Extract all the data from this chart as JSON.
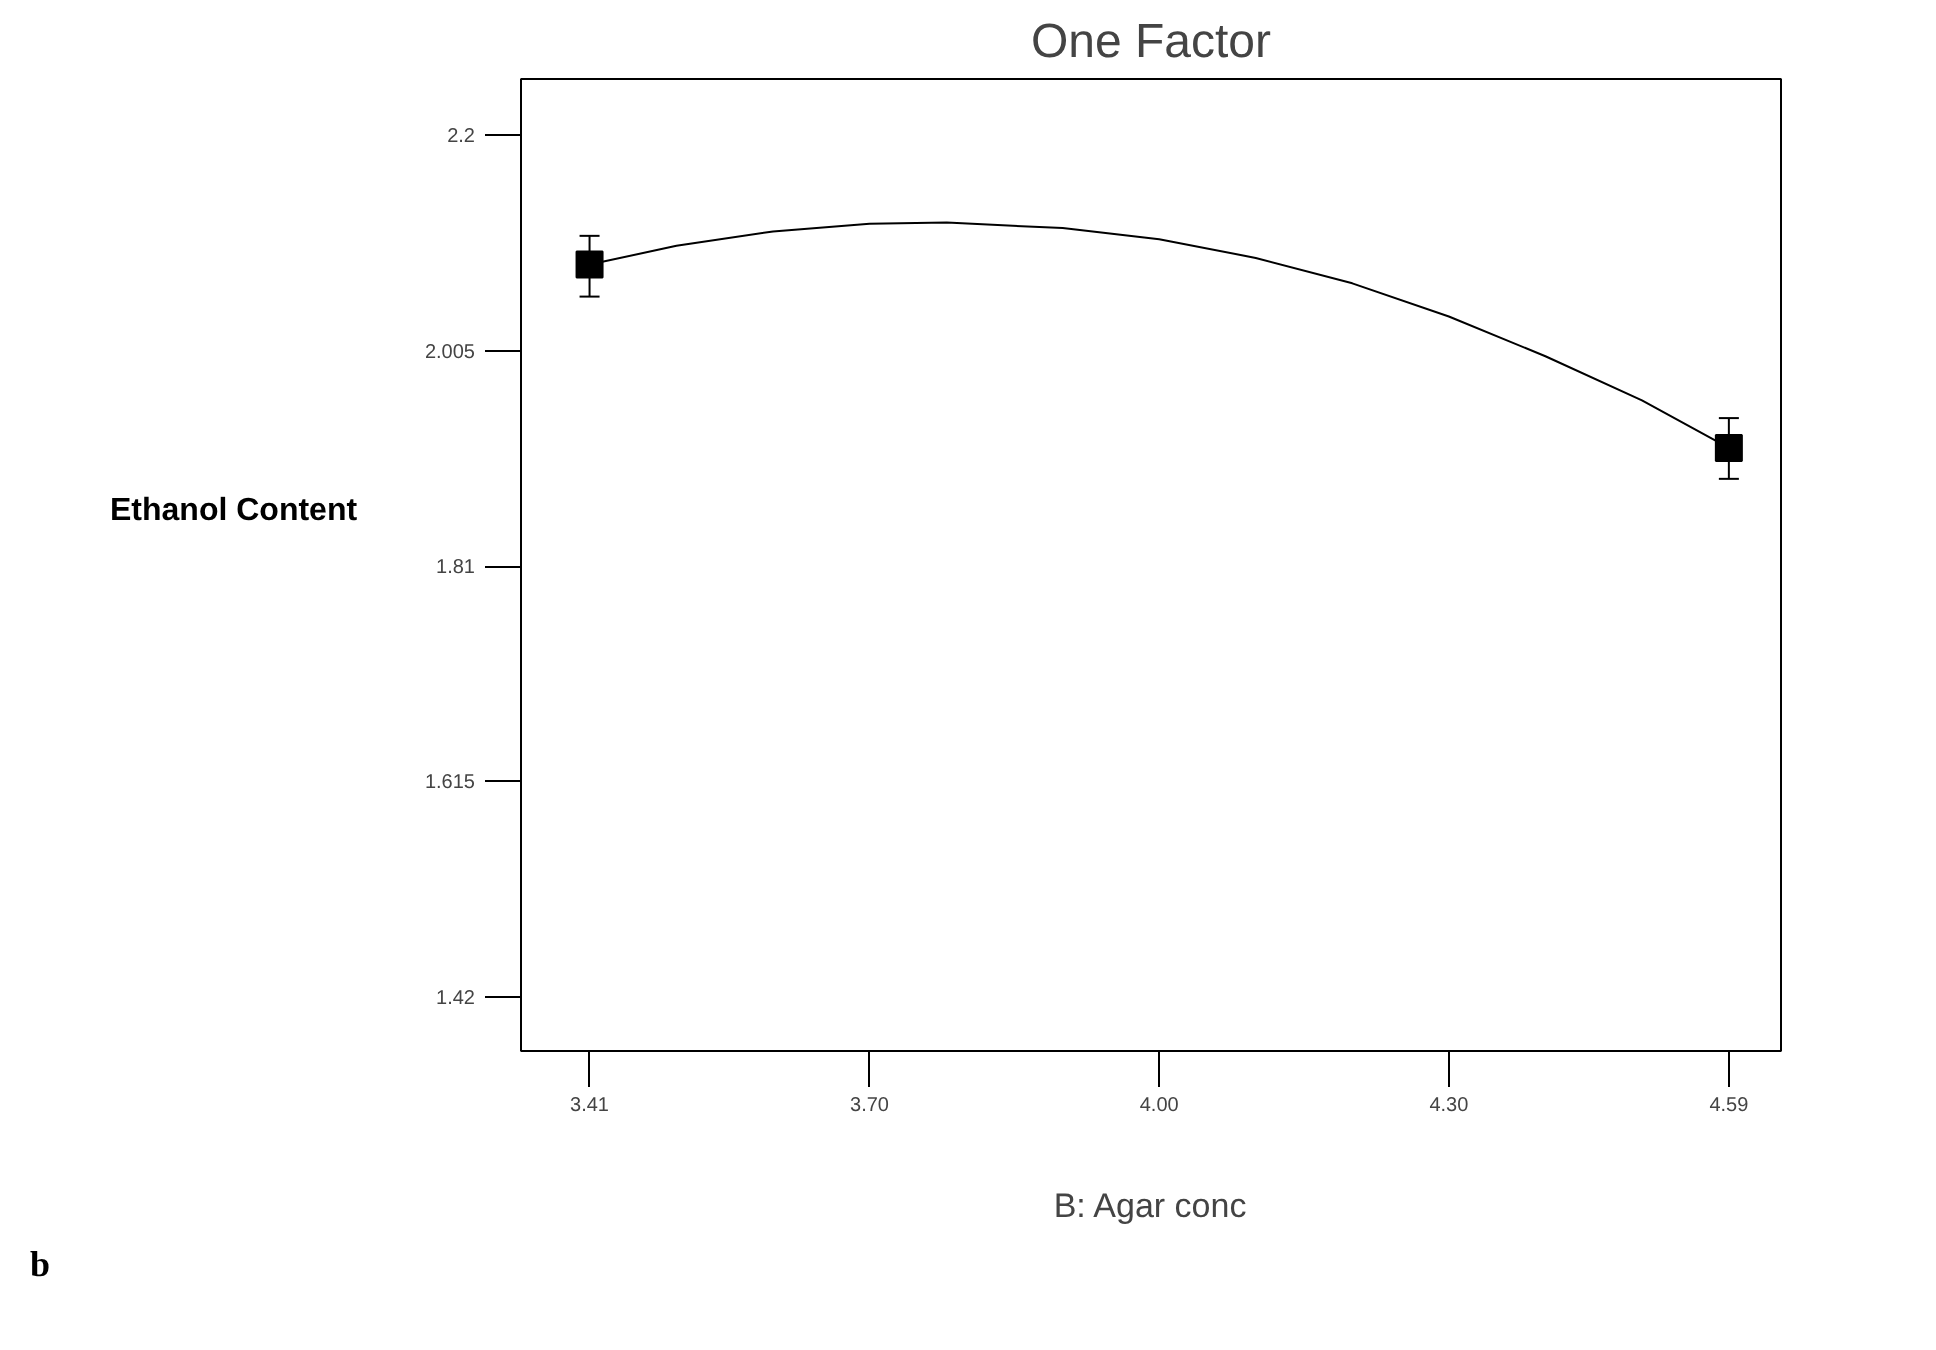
{
  "chart_data": {
    "type": "scatter",
    "title": "One Factor",
    "xlabel": "B: Agar conc",
    "ylabel": "Ethanol Content",
    "xlim": [
      3.339,
      4.644
    ],
    "ylim": [
      1.371,
      2.251
    ],
    "xticks": [
      {
        "value": 3.41,
        "label": "3.41"
      },
      {
        "value": 3.7,
        "label": "3.70"
      },
      {
        "value": 4.0,
        "label": "4.00"
      },
      {
        "value": 4.3,
        "label": "4.30"
      },
      {
        "value": 4.59,
        "label": "4.59"
      }
    ],
    "yticks": [
      1.42,
      1.615,
      1.81,
      2.005,
      2.2
    ],
    "grid": false,
    "series": [
      {
        "type": "line",
        "marker": "none",
        "color": "#000000",
        "x": [
          3.41,
          3.5,
          3.6,
          3.7,
          3.78,
          3.9,
          4.0,
          4.1,
          4.2,
          4.3,
          4.4,
          4.5,
          4.59
        ],
        "values": [
          2.083,
          2.1,
          2.113,
          2.12,
          2.121,
          2.116,
          2.106,
          2.089,
          2.066,
          2.036,
          2.0,
          1.96,
          1.917
        ]
      },
      {
        "marker": "square",
        "color": "#000000",
        "x": [
          3.41,
          4.59
        ],
        "values": [
          2.083,
          1.917
        ],
        "errors": [
          [
            2.054,
            2.109
          ],
          [
            1.889,
            1.944
          ]
        ]
      }
    ],
    "annotations": [
      "b"
    ]
  }
}
